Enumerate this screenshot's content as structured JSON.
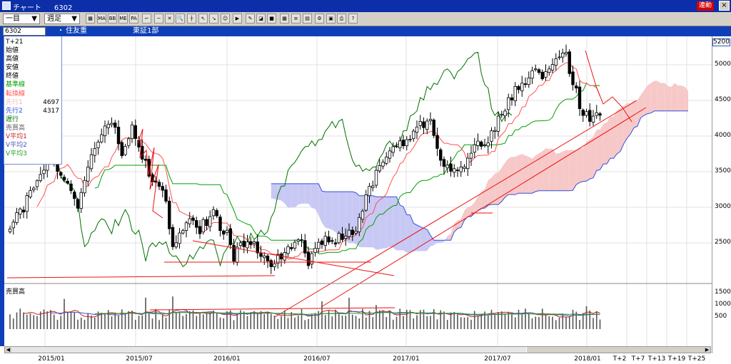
{
  "window": {
    "title": "チャート",
    "code": "6302",
    "link_badge": "連動",
    "close_glyph": "×"
  },
  "toolbar": {
    "period_select": "一目",
    "interval_select": "週足",
    "dropdown_glyph": "▼",
    "buttons": [
      {
        "name": "chart-type-icon",
        "text": "▦"
      },
      {
        "name": "ma-button",
        "text": "MA"
      },
      {
        "name": "bb-button",
        "text": "BB"
      },
      {
        "name": "me-button",
        "text": "ME"
      },
      {
        "name": "pa-button",
        "text": "PA"
      },
      {
        "name": "trendline-icon",
        "text": "⌐"
      },
      {
        "name": "horizontal-line-icon",
        "text": "─"
      },
      {
        "name": "fibonacci-icon",
        "text": "✕"
      },
      {
        "name": "zoom-icon",
        "text": "🔍"
      },
      {
        "name": "crosshair-icon",
        "text": "┼"
      },
      {
        "name": "cursor-icon",
        "text": "↖"
      },
      {
        "name": "arrow-icon",
        "text": "↘"
      },
      {
        "name": "smiley-icon",
        "text": "☺"
      },
      {
        "name": "flag-icon",
        "text": "▶"
      },
      {
        "name": "pencil-icon",
        "text": "✎"
      },
      {
        "name": "eraser-icon",
        "text": "◪"
      },
      {
        "name": "color-icon",
        "text": "■"
      },
      {
        "name": "grid-icon",
        "text": "▦"
      },
      {
        "name": "list-icon",
        "text": "≡"
      },
      {
        "name": "table-icon",
        "text": "▤"
      },
      {
        "name": "settings-icon",
        "text": "⚙"
      },
      {
        "name": "panel-icon",
        "text": "▣"
      },
      {
        "name": "print-icon",
        "text": "⎙"
      },
      {
        "name": "help-icon",
        "text": "?"
      }
    ]
  },
  "info_bar": {
    "code_value": "6302",
    "dot": "・",
    "company": "住友重",
    "market": "東証1部"
  },
  "legend": {
    "items": [
      {
        "label": "T+21",
        "color": "#000000",
        "value": ""
      },
      {
        "label": "始値",
        "color": "#000000",
        "value": ""
      },
      {
        "label": "高値",
        "color": "#000000",
        "value": ""
      },
      {
        "label": "安値",
        "color": "#000000",
        "value": ""
      },
      {
        "label": "終値",
        "color": "#000000",
        "value": ""
      },
      {
        "label": "基準線",
        "color": "#00a000",
        "value": ""
      },
      {
        "label": "転換線",
        "color": "#ff5050",
        "value": ""
      },
      {
        "label": "先行1",
        "color": "#f0b8b8",
        "value": "4697"
      },
      {
        "label": "先行2",
        "color": "#3050e0",
        "value": "4317"
      },
      {
        "label": "遅行",
        "color": "#007000",
        "value": ""
      },
      {
        "label": "売買高",
        "color": "#606060",
        "value": ""
      },
      {
        "label": "V平均1",
        "color": "#c02020",
        "value": ""
      },
      {
        "label": "V平均2",
        "color": "#5050c0",
        "value": ""
      },
      {
        "label": "V平均3",
        "color": "#20a020",
        "value": ""
      }
    ]
  },
  "price_box": "5200",
  "price_axis": {
    "ticks": [
      5000,
      4500,
      4000,
      3500,
      3000,
      2500
    ],
    "range": [
      2000,
      5300
    ]
  },
  "volume_panel": {
    "title": "売買高",
    "ticks": [
      1500,
      1000,
      500
    ],
    "range": [
      0,
      1800
    ]
  },
  "x_axis": {
    "labels": [
      "2015/01",
      "2015/07",
      "2016/01",
      "2016/07",
      "2017/01",
      "2017/07",
      "2018/01",
      "T+2",
      "T+7",
      "T+13",
      "T+19",
      "T+25"
    ]
  },
  "colors": {
    "kijun": "#00a000",
    "tenkan": "#ff5050",
    "senkou2": "#3050e0",
    "chikou": "#007000",
    "kumo_up": "#f7c8c8",
    "kumo_down": "#c8c8f4",
    "trendline": "#ee1111",
    "candle_up": "#ffffff",
    "candle_down": "#000000",
    "title_bar": "#0c2ea8"
  },
  "chart_data": {
    "type": "candlestick",
    "title": "6302 住友重 東証1部",
    "interval": "weekly",
    "x_start": "2014/10",
    "weeks": 178,
    "ylim": [
      2000,
      5300
    ],
    "price_keypoints": [
      [
        0,
        2700
      ],
      [
        4,
        3000
      ],
      [
        8,
        3450
      ],
      [
        12,
        3750
      ],
      [
        16,
        3400
      ],
      [
        20,
        3000
      ],
      [
        24,
        3750
      ],
      [
        28,
        4100
      ],
      [
        30,
        4200
      ],
      [
        33,
        3750
      ],
      [
        36,
        4100
      ],
      [
        38,
        3800
      ],
      [
        42,
        3400
      ],
      [
        46,
        3100
      ],
      [
        48,
        2400
      ],
      [
        52,
        2800
      ],
      [
        56,
        2700
      ],
      [
        60,
        2900
      ],
      [
        64,
        2600
      ],
      [
        66,
        2300
      ],
      [
        70,
        2550
      ],
      [
        74,
        2350
      ],
      [
        78,
        2200
      ],
      [
        82,
        2450
      ],
      [
        86,
        2600
      ],
      [
        88,
        2250
      ],
      [
        92,
        2500
      ],
      [
        96,
        2550
      ],
      [
        102,
        2650
      ],
      [
        104,
        3000
      ],
      [
        108,
        3500
      ],
      [
        112,
        3800
      ],
      [
        116,
        3900
      ],
      [
        120,
        4100
      ],
      [
        124,
        4250
      ],
      [
        126,
        3850
      ],
      [
        128,
        3600
      ],
      [
        132,
        3450
      ],
      [
        135,
        3700
      ],
      [
        138,
        3900
      ],
      [
        142,
        4000
      ],
      [
        146,
        4400
      ],
      [
        150,
        4700
      ],
      [
        154,
        4900
      ],
      [
        158,
        4850
      ],
      [
        161,
        5100
      ],
      [
        164,
        5100
      ],
      [
        166,
        4800
      ],
      [
        168,
        4400
      ],
      [
        170,
        4300
      ],
      [
        172,
        4250
      ],
      [
        174,
        4300
      ]
    ],
    "volume_peaks": [
      {
        "week": 16,
        "value": 1250
      },
      {
        "week": 40,
        "value": 1300
      },
      {
        "week": 48,
        "value": 1350
      },
      {
        "week": 92,
        "value": 1150
      },
      {
        "week": 100,
        "value": 1300
      },
      {
        "week": 108,
        "value": 1000
      },
      {
        "week": 152,
        "value": 850
      },
      {
        "week": 166,
        "value": 800
      },
      {
        "week": 170,
        "value": 950
      }
    ]
  }
}
